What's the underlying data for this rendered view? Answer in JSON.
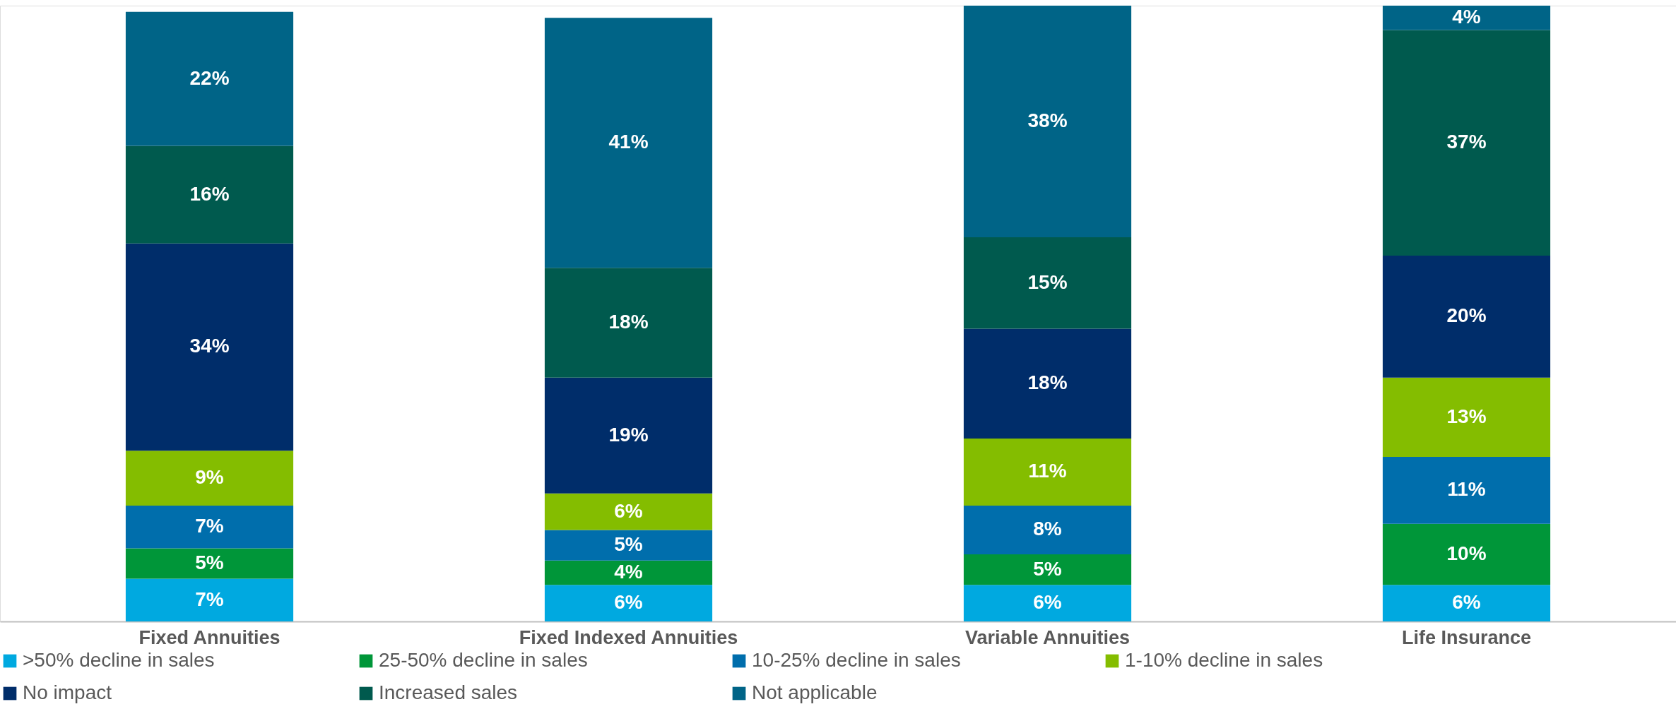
{
  "chart_data": {
    "type": "bar",
    "stacked": true,
    "legend": "bottom",
    "categories": [
      "Fixed Annuities",
      "Fixed Indexed Annuities",
      "Variable Annuities",
      "Life Insurance"
    ],
    "series": [
      {
        "name": ">50% decline in sales",
        "color": "#00a9e0",
        "values": [
          7,
          6,
          6,
          6
        ],
        "value_labels": [
          "7%",
          "6%",
          "6%",
          "6%"
        ]
      },
      {
        "name": "25-50% decline in sales",
        "color": "#009639",
        "values": [
          5,
          4,
          5,
          10
        ],
        "value_labels": [
          "5%",
          "4%",
          "5%",
          "10%"
        ]
      },
      {
        "name": "10-25% decline in sales",
        "color": "#006eac",
        "values": [
          7,
          5,
          8,
          11
        ],
        "value_labels": [
          "7%",
          "5%",
          "8%",
          "11%"
        ]
      },
      {
        "name": "1-10% decline in sales",
        "color": "#84bd00",
        "values": [
          9,
          6,
          11,
          13
        ],
        "value_labels": [
          "9%",
          "6%",
          "11%",
          "13%"
        ]
      },
      {
        "name": "No impact",
        "color": "#002d6a",
        "values": [
          34,
          19,
          18,
          20
        ],
        "value_labels": [
          "34%",
          "19%",
          "18%",
          "20%"
        ]
      },
      {
        "name": "Increased sales",
        "color": "#005a4e",
        "values": [
          16,
          18,
          15,
          37
        ],
        "value_labels": [
          "16%",
          "18%",
          "15%",
          "37%"
        ]
      },
      {
        "name": "Not applicable",
        "color": "#006487",
        "values": [
          22,
          41,
          38,
          4
        ],
        "value_labels": [
          "22%",
          "41%",
          "38%",
          "4%"
        ]
      }
    ]
  }
}
